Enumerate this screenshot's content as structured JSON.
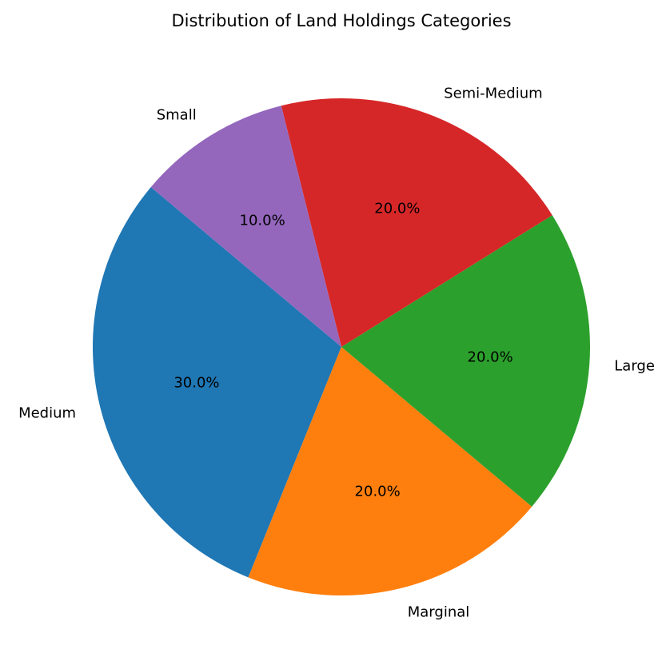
{
  "chart_data": {
    "type": "pie",
    "title": "Distribution of Land Holdings Categories",
    "start_angle_deg": 140,
    "direction": "counterclockwise",
    "slices": [
      {
        "label": "Medium",
        "value": 30,
        "pct_label": "30.0%",
        "color": "#1f77b4"
      },
      {
        "label": "Marginal",
        "value": 20,
        "pct_label": "20.0%",
        "color": "#ff7f0e"
      },
      {
        "label": "Large",
        "value": 20,
        "pct_label": "20.0%",
        "color": "#2ca02c"
      },
      {
        "label": "Semi-Medium",
        "value": 20,
        "pct_label": "20.0%",
        "color": "#d62728"
      },
      {
        "label": "Small",
        "value": 10,
        "pct_label": "10.0%",
        "color": "#9467bd"
      }
    ]
  }
}
